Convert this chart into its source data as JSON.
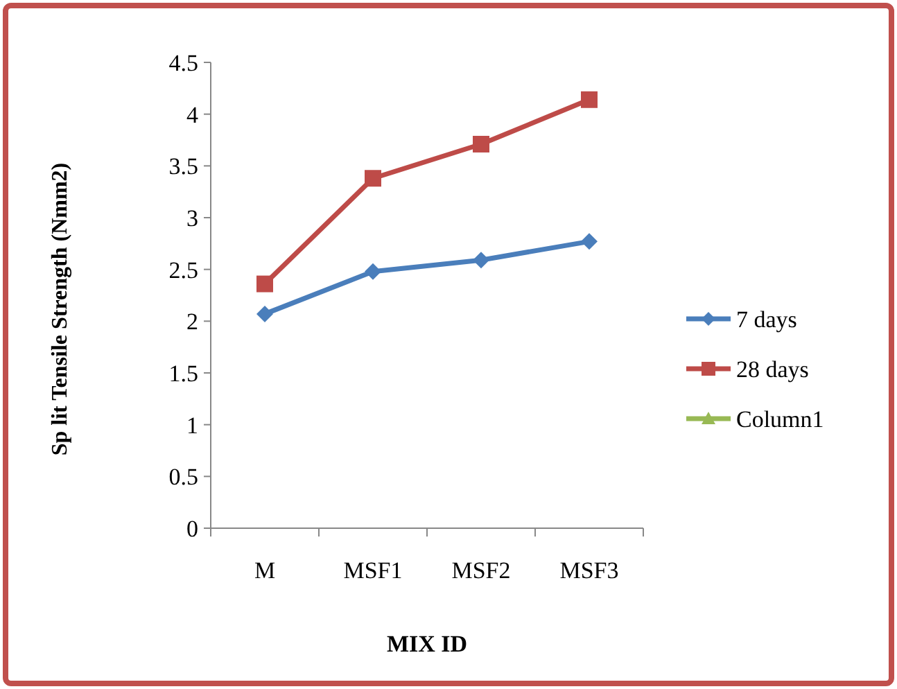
{
  "chart_data": {
    "type": "line",
    "xlabel": "MIX ID",
    "ylabel": "Sp lit Tensile Strength (Nmm2)",
    "categories": [
      "M",
      "MSF1",
      "MSF2",
      "MSF3"
    ],
    "series": [
      {
        "name": "7 days",
        "color": "#4a7ebb",
        "marker": "diamond",
        "values": [
          2.07,
          2.48,
          2.59,
          2.77
        ]
      },
      {
        "name": "28 days",
        "color": "#be4b48",
        "marker": "square",
        "values": [
          2.36,
          3.38,
          3.71,
          4.14
        ]
      },
      {
        "name": "Column1",
        "color": "#98b954",
        "marker": "triangle",
        "values": [
          null,
          null,
          null,
          null
        ]
      }
    ],
    "ylim": [
      0,
      4.5
    ],
    "yticks": [
      0,
      0.5,
      1,
      1.5,
      2,
      2.5,
      3,
      3.5,
      4,
      4.5
    ],
    "grid": false,
    "legend": "right"
  }
}
